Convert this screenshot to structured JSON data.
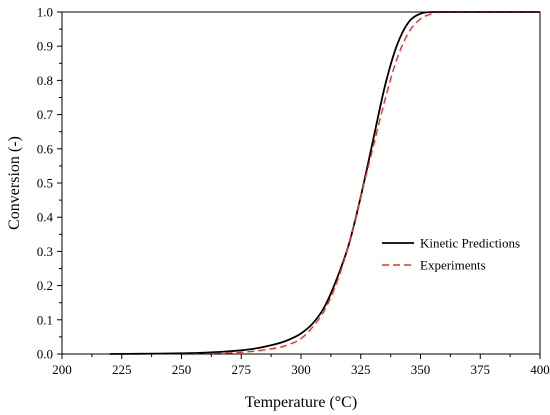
{
  "chart_data": {
    "type": "line",
    "title": "",
    "xlabel": "Temperature (°C)",
    "ylabel": "Conversion (-)",
    "xlim": [
      200,
      400
    ],
    "ylim": [
      0,
      1.0
    ],
    "xticks": [
      200,
      225,
      250,
      275,
      300,
      325,
      350,
      375,
      400
    ],
    "yticks": [
      0,
      0.1,
      0.2,
      0.3,
      0.4,
      0.5,
      0.6,
      0.7,
      0.8,
      0.9,
      1.0
    ],
    "xtick_labels": [
      "200",
      "225",
      "250",
      "275",
      "300",
      "325",
      "350",
      "375",
      "400"
    ],
    "ytick_labels": [
      "0.0",
      "0.1",
      "0.2",
      "0.3",
      "0.4",
      "0.5",
      "0.6",
      "0.7",
      "0.8",
      "0.9",
      "1.0"
    ],
    "grid": false,
    "legend": "center-right",
    "series": [
      {
        "name": "Kinetic Predictions",
        "color": "#000000",
        "dash": "solid",
        "x": [
          220,
          240,
          250,
          260,
          270,
          280,
          290,
          295,
          300,
          305,
          310,
          315,
          320,
          325,
          330,
          335,
          340,
          345,
          350,
          355,
          360,
          380,
          400
        ],
        "y": [
          0.0,
          0.001,
          0.002,
          0.004,
          0.008,
          0.015,
          0.03,
          0.042,
          0.06,
          0.09,
          0.14,
          0.22,
          0.32,
          0.46,
          0.62,
          0.78,
          0.9,
          0.97,
          0.995,
          1.0,
          1.0,
          1.0,
          1.0
        ]
      },
      {
        "name": "Experiments",
        "color": "#e8302a",
        "dash": "dashed",
        "x": [
          250,
          260,
          270,
          280,
          290,
          295,
          300,
          305,
          310,
          315,
          320,
          325,
          330,
          335,
          340,
          345,
          350,
          355,
          360,
          380,
          400
        ],
        "y": [
          0.0,
          0.001,
          0.003,
          0.008,
          0.018,
          0.028,
          0.045,
          0.08,
          0.13,
          0.21,
          0.32,
          0.46,
          0.6,
          0.74,
          0.86,
          0.94,
          0.98,
          0.995,
          1.0,
          1.0,
          1.0
        ]
      }
    ]
  }
}
